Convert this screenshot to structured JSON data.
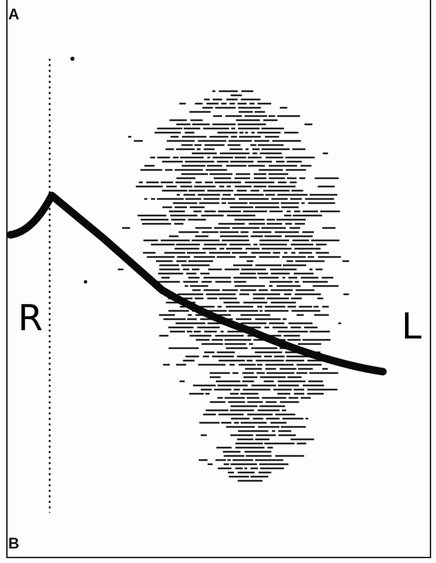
{
  "panel_labels": [
    "A",
    "B"
  ],
  "side_labels": [
    "R",
    "L"
  ]
}
